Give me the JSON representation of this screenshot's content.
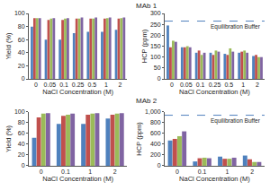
{
  "chart_data": [
    {
      "type": "bar",
      "title": "MAb 1",
      "x_label": "NaCl Concentration (M)",
      "y_label": "Yield (%)",
      "categories": [
        "0",
        "0.05",
        "0.1",
        "0.25",
        "0.5",
        "1",
        "2"
      ],
      "series": [
        {
          "color": "#4f81bd",
          "values": [
            80,
            60,
            60,
            70,
            72,
            72,
            75
          ]
        },
        {
          "color": "#c0504d",
          "values": [
            93,
            90,
            90,
            92,
            92,
            92,
            92
          ]
        },
        {
          "color": "#9bbb59",
          "values": [
            93,
            92,
            92,
            92,
            92,
            93,
            93
          ]
        },
        {
          "color": "#8064a2",
          "values": [
            93,
            93,
            93,
            94,
            94,
            94,
            94
          ]
        }
      ],
      "ylim": [
        0,
        100
      ],
      "yticks": [
        0,
        20,
        40,
        60,
        80,
        100
      ],
      "grid": false
    },
    {
      "type": "bar",
      "x_label": "NaCl Concentration (M)",
      "y_label": "HCP (ppm)",
      "categories": [
        "0",
        "0.05",
        "0.1",
        "0.25",
        "0.5",
        "1",
        "2"
      ],
      "series": [
        {
          "color": "#4f81bd",
          "values": [
            245,
            145,
            120,
            120,
            115,
            120,
            105
          ]
        },
        {
          "color": "#c0504d",
          "values": [
            145,
            145,
            130,
            110,
            110,
            125,
            110
          ]
        },
        {
          "color": "#9bbb59",
          "values": [
            175,
            150,
            110,
            130,
            140,
            130,
            100
          ]
        },
        {
          "color": "#8064a2",
          "values": [
            170,
            145,
            120,
            125,
            125,
            120,
            100
          ]
        }
      ],
      "annotations": [
        {
          "text": "Equilibration Buffer",
          "y": 265,
          "line_style": "dashed",
          "color": "#4f81bd"
        }
      ],
      "ylim": [
        0,
        300
      ],
      "yticks": [
        0,
        50,
        100,
        150,
        200,
        250,
        300
      ],
      "grid": false
    },
    {
      "type": "bar",
      "title": "MAb 2",
      "x_label": "NaCl Concentration (M)",
      "y_label": "Yield (%)",
      "categories": [
        "0",
        "0.1",
        "1",
        "2"
      ],
      "series": [
        {
          "color": "#4f81bd",
          "values": [
            52,
            78,
            78,
            88
          ]
        },
        {
          "color": "#c0504d",
          "values": [
            90,
            93,
            95,
            95
          ]
        },
        {
          "color": "#9bbb59",
          "values": [
            97,
            95,
            97,
            97
          ]
        },
        {
          "color": "#8064a2",
          "values": [
            98,
            97,
            98,
            98
          ]
        }
      ],
      "ylim": [
        0,
        100
      ],
      "yticks": [
        0,
        20,
        40,
        60,
        80,
        100
      ],
      "grid": false
    },
    {
      "type": "bar",
      "x_label": "NaCl Concentration (M)",
      "y_label": "HCP (ppm)",
      "categories": [
        "0",
        "0.1",
        "1",
        "2"
      ],
      "series": [
        {
          "color": "#4f81bd",
          "values": [
            470,
            80,
            170,
            190
          ]
        },
        {
          "color": "#c0504d",
          "values": [
            500,
            140,
            130,
            120
          ]
        },
        {
          "color": "#9bbb59",
          "values": [
            550,
            150,
            130,
            70
          ]
        },
        {
          "color": "#8064a2",
          "values": [
            640,
            140,
            150,
            70
          ]
        }
      ],
      "annotations": [
        {
          "text": "Equilibration Buffer",
          "y": 940,
          "line_style": "dashed",
          "color": "#4f81bd"
        }
      ],
      "ylim": [
        0,
        1000
      ],
      "yticks": [
        0,
        200,
        400,
        600,
        800,
        {
          "value": 1000,
          "label": "1,000"
        }
      ],
      "grid": false
    }
  ]
}
